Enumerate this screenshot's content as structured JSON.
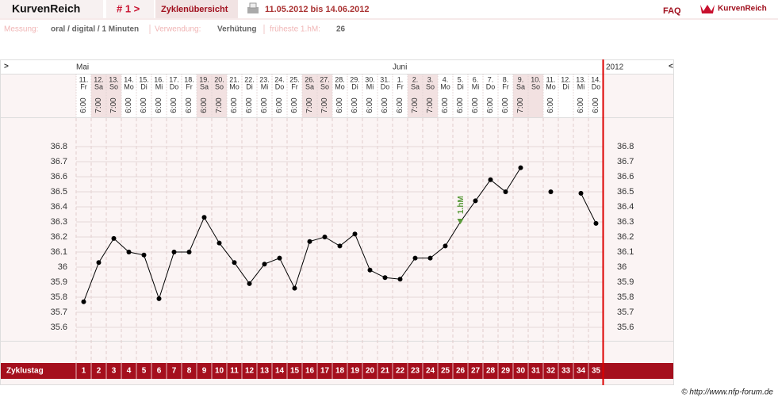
{
  "header": {
    "logo": "KurvenReich",
    "cycle": "# 1 >",
    "tab": "Zyklenübersicht",
    "range": "11.05.2012 bis 14.06.2012",
    "faq": "FAQ",
    "brand": "KurvenReich"
  },
  "info": {
    "measurement_label": "Messung:",
    "measurement": "oral / digital / 1 Minuten",
    "usage_label": "Verwendung:",
    "usage": "Verhütung",
    "first_hm_label": "früheste 1.hM:",
    "first_hm": 26
  },
  "footer": "© http://www.nfp-forum.de",
  "chart_data": {
    "type": "line",
    "nav_prev": ">",
    "nav_next": "<",
    "year": "2012",
    "months": [
      "Mai",
      "Juni"
    ],
    "days": [
      "11.",
      "12.",
      "13.",
      "14.",
      "15.",
      "16.",
      "17.",
      "18.",
      "19.",
      "20.",
      "21.",
      "22.",
      "23.",
      "24.",
      "25.",
      "26.",
      "27.",
      "28.",
      "29.",
      "30.",
      "31.",
      "1.",
      "2.",
      "3.",
      "4.",
      "5.",
      "6.",
      "7.",
      "8.",
      "9.",
      "10.",
      "11.",
      "12.",
      "13.",
      "14."
    ],
    "weekdays": [
      "Fr",
      "Sa",
      "So",
      "Mo",
      "Di",
      "Mi",
      "Do",
      "Fr",
      "Sa",
      "So",
      "Mo",
      "Di",
      "Mi",
      "Do",
      "Fr",
      "Sa",
      "So",
      "Mo",
      "Di",
      "Mi",
      "Do",
      "Fr",
      "Sa",
      "So",
      "Mo",
      "Di",
      "Mi",
      "Do",
      "Fr",
      "Sa",
      "So",
      "Mo",
      "Di",
      "Mi",
      "Do"
    ],
    "times": [
      "6:00",
      "7:00",
      "7:00",
      "6:00",
      "6:00",
      "6:00",
      "6:00",
      "6:00",
      "6:00",
      "7:00",
      "6:00",
      "6:00",
      "6:00",
      "6:00",
      "6:00",
      "7:00",
      "7:00",
      "6:00",
      "6:00",
      "6:00",
      "6:00",
      "6:00",
      "7:00",
      "7:00",
      "6:00",
      "6:00",
      "6:00",
      "6:00",
      "6:00",
      "7:00",
      null,
      "6:00",
      null,
      "6:00",
      "6:00"
    ],
    "x_label": "Zyklustag",
    "x": [
      1,
      2,
      3,
      4,
      5,
      6,
      7,
      8,
      9,
      10,
      11,
      12,
      13,
      14,
      15,
      16,
      17,
      18,
      19,
      20,
      21,
      22,
      23,
      24,
      25,
      26,
      27,
      28,
      29,
      30,
      31,
      32,
      33,
      34,
      35
    ],
    "xlim": [
      0.5,
      35.5
    ],
    "series": [
      {
        "color": "#000000",
        "values": [
          35.77,
          36.03,
          36.19,
          36.1,
          36.08,
          35.79,
          36.1,
          36.1,
          36.33,
          36.16,
          36.03,
          35.89,
          36.02,
          36.06,
          35.86,
          36.17,
          36.2,
          36.14,
          36.22,
          35.98,
          35.93,
          35.92,
          36.06,
          36.06,
          36.14,
          36.3,
          36.44,
          36.58,
          36.5,
          36.66,
          null,
          36.5,
          null,
          36.49,
          36.29
        ]
      }
    ],
    "ylim": [
      35.5,
      37.0
    ],
    "yticks": [
      35.6,
      35.7,
      35.8,
      35.9,
      36,
      36.1,
      36.2,
      36.3,
      36.4,
      36.5,
      36.6,
      36.7,
      36.8
    ],
    "grid": true,
    "annotations": [
      {
        "text": "1.hM",
        "x": 26,
        "color": "#5a9a3a"
      }
    ]
  }
}
